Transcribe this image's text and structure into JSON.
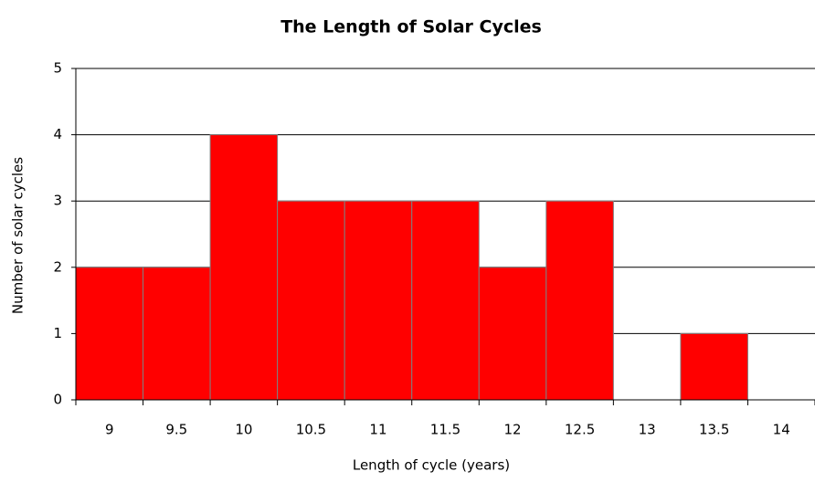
{
  "chart_data": {
    "type": "bar",
    "title": "The Length of Solar Cycles",
    "x_label": "Length  of cycle (years)",
    "y_label": "Number  of solar cycles",
    "categories": [
      "9",
      "9.5",
      "10",
      "10.5",
      "11",
      "11.5",
      "12",
      "12.5",
      "13",
      "13.5",
      "14"
    ],
    "values": [
      2,
      2,
      4,
      3,
      3,
      3,
      2,
      3,
      0,
      1,
      0
    ],
    "color": "#ff0000",
    "ylim": [
      0,
      5
    ],
    "yticks": [
      0,
      1,
      2,
      3,
      4,
      5
    ],
    "grid": true
  }
}
